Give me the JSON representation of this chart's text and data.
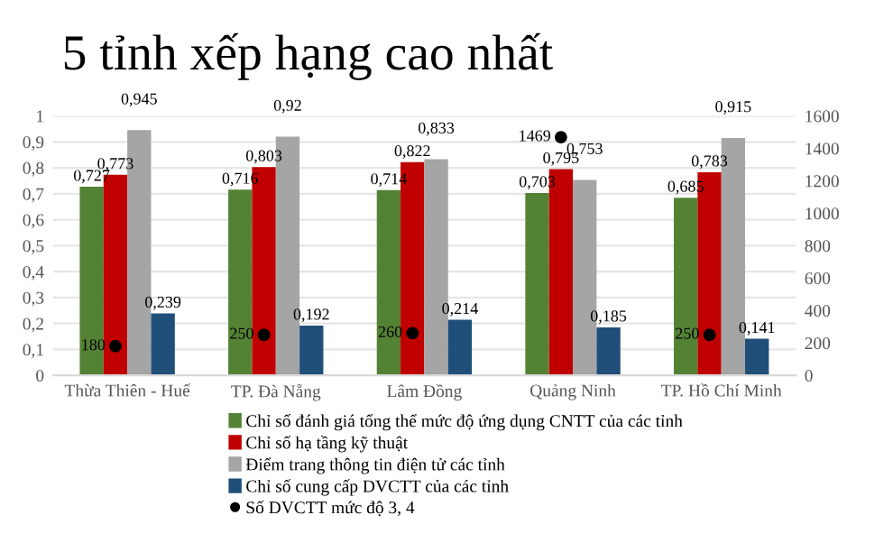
{
  "chart_data": {
    "type": "bar",
    "title": "5 tỉnh xếp hạng cao nhất",
    "categories": [
      "Thừa Thiên - Huế",
      "TP. Đà Nẵng",
      "Lâm Đồng",
      "Quảng Ninh",
      "TP. Hồ Chí Minh"
    ],
    "series": [
      {
        "name": "Chỉ số đánh giá tổng thể mức độ ứng dụng CNTT của các tỉnh",
        "color": "#548235",
        "values": [
          0.727,
          0.716,
          0.714,
          0.703,
          0.685
        ],
        "value_labels": [
          "0,727",
          "0,716",
          "0,714",
          "0,703",
          "0,685"
        ]
      },
      {
        "name": "Chỉ số hạ tầng kỹ thuật",
        "color": "#c00000",
        "values": [
          0.773,
          0.803,
          0.822,
          0.795,
          0.783
        ],
        "value_labels": [
          "0,773",
          "0,803",
          "0,822",
          "0,795",
          "0,783"
        ]
      },
      {
        "name": "Điểm trang thông tin điện tử các tỉnh",
        "color": "#a5a5a5",
        "values": [
          0.945,
          0.92,
          0.833,
          0.753,
          0.915
        ],
        "value_labels": [
          "0,945",
          "0,92",
          "0,833",
          "0,753",
          "0,915"
        ]
      },
      {
        "name": "Chỉ số cung cấp DVCTT của các tỉnh",
        "color": "#1f4e79",
        "values": [
          0.239,
          0.192,
          0.214,
          0.185,
          0.141
        ],
        "value_labels": [
          "0,239",
          "0,192",
          "0,214",
          "0,185",
          "0,141"
        ]
      },
      {
        "name": "Số DVCTT mức độ 3, 4",
        "type": "scatter",
        "axis": "y2",
        "marker": "circle",
        "color": "#000000",
        "values": [
          180,
          250,
          260,
          1469,
          250
        ],
        "value_labels": [
          "180",
          "250",
          "260",
          "1469",
          "250"
        ]
      }
    ],
    "ylim": [
      0,
      1
    ],
    "yticks": [
      0,
      {
        "value": 0.1,
        "label": "0,1"
      },
      {
        "value": 0.2,
        "label": "0,2"
      },
      {
        "value": 0.3,
        "label": "0,3"
      },
      {
        "value": 0.4,
        "label": "0,4"
      },
      {
        "value": 0.5,
        "label": "0,5"
      },
      {
        "value": 0.6,
        "label": "0,6"
      },
      {
        "value": 0.7,
        "label": "0,7"
      },
      {
        "value": 0.8,
        "label": "0,8"
      },
      {
        "value": 0.9,
        "label": "0,9"
      },
      1
    ],
    "y2lim": [
      0,
      1600
    ],
    "y2ticks": [
      0,
      200,
      400,
      600,
      800,
      1000,
      1200,
      1400,
      1600
    ],
    "grid": "y",
    "legend": "bottom"
  }
}
